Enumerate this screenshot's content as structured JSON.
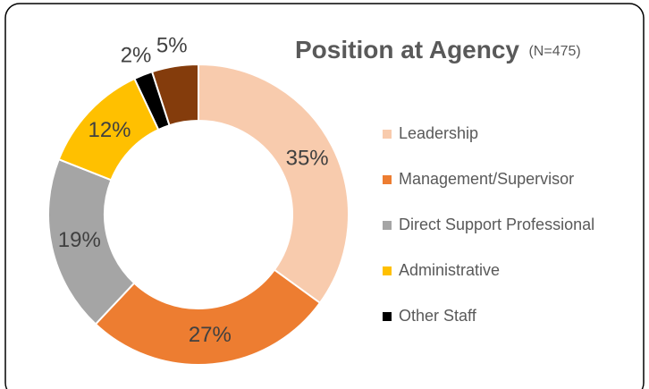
{
  "chart_data": {
    "type": "donut",
    "title": "Position at Agency",
    "subtitle": "(N=475)",
    "categories": [
      "Leadership",
      "Management/Supervisor",
      "Direct Support Professional",
      "Administrative",
      "Other Staff",
      null
    ],
    "values": [
      35,
      27,
      19,
      12,
      2,
      5
    ],
    "value_labels": [
      "35%",
      "27%",
      "19%",
      "12%",
      "2%",
      "5%"
    ],
    "colors": [
      "#f8cbad",
      "#ed7d31",
      "#a5a5a5",
      "#ffc000",
      "#000000",
      "#843c0c"
    ],
    "legend": "right"
  }
}
